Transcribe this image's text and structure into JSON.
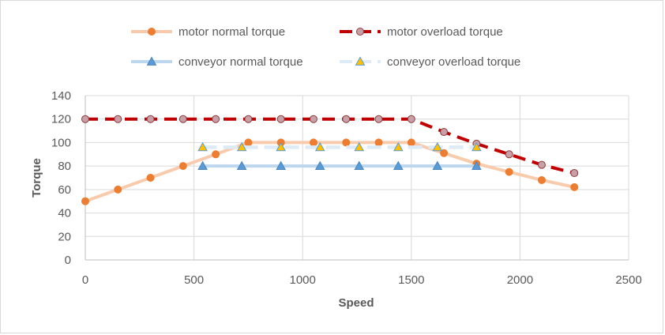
{
  "chart_data": {
    "type": "line",
    "title": "",
    "xlabel": "Speed",
    "ylabel": "Torque",
    "xlim": [
      0,
      2500
    ],
    "ylim": [
      0,
      140
    ],
    "x_ticks": [
      0,
      500,
      1000,
      1500,
      2000,
      2500
    ],
    "y_ticks": [
      0,
      20,
      40,
      60,
      80,
      100,
      120,
      140
    ],
    "grid": true,
    "legend_position": "top",
    "series": [
      {
        "name": "motor normal torque",
        "color": "#f8cbad",
        "marker_color": "#ed7d31",
        "marker": "circle",
        "line_style": "solid",
        "points": [
          [
            0,
            50
          ],
          [
            150,
            60
          ],
          [
            300,
            70
          ],
          [
            450,
            80
          ],
          [
            600,
            90
          ],
          [
            750,
            100
          ],
          [
            900,
            100
          ],
          [
            1050,
            100
          ],
          [
            1200,
            100
          ],
          [
            1350,
            100
          ],
          [
            1500,
            100
          ],
          [
            1650,
            91
          ],
          [
            1800,
            82
          ],
          [
            1950,
            75
          ],
          [
            2100,
            68
          ],
          [
            2250,
            62
          ]
        ]
      },
      {
        "name": "motor overload torque",
        "color": "#c00000",
        "marker_color": "#c9a0a8",
        "marker": "circle",
        "line_style": "dashed",
        "points": [
          [
            0,
            120
          ],
          [
            150,
            120
          ],
          [
            300,
            120
          ],
          [
            450,
            120
          ],
          [
            600,
            120
          ],
          [
            750,
            120
          ],
          [
            900,
            120
          ],
          [
            1050,
            120
          ],
          [
            1200,
            120
          ],
          [
            1350,
            120
          ],
          [
            1500,
            120
          ],
          [
            1650,
            109
          ],
          [
            1800,
            99
          ],
          [
            1950,
            90
          ],
          [
            2100,
            81
          ],
          [
            2250,
            74
          ]
        ]
      },
      {
        "name": "conveyor normal torque",
        "color": "#bdd7ee",
        "marker_color": "#5b9bd5",
        "marker": "triangle",
        "line_style": "solid",
        "points": [
          [
            540,
            80
          ],
          [
            720,
            80
          ],
          [
            900,
            80
          ],
          [
            1080,
            80
          ],
          [
            1260,
            80
          ],
          [
            1440,
            80
          ],
          [
            1620,
            80
          ],
          [
            1800,
            80
          ]
        ]
      },
      {
        "name": "conveyor overload torque",
        "color": "#ddebf7",
        "marker_color": "#ffc000",
        "marker": "triangle",
        "line_style": "dashed",
        "points": [
          [
            540,
            96
          ],
          [
            720,
            96
          ],
          [
            900,
            96
          ],
          [
            1080,
            96
          ],
          [
            1260,
            96
          ],
          [
            1440,
            96
          ],
          [
            1620,
            96
          ],
          [
            1800,
            96
          ]
        ]
      }
    ]
  }
}
